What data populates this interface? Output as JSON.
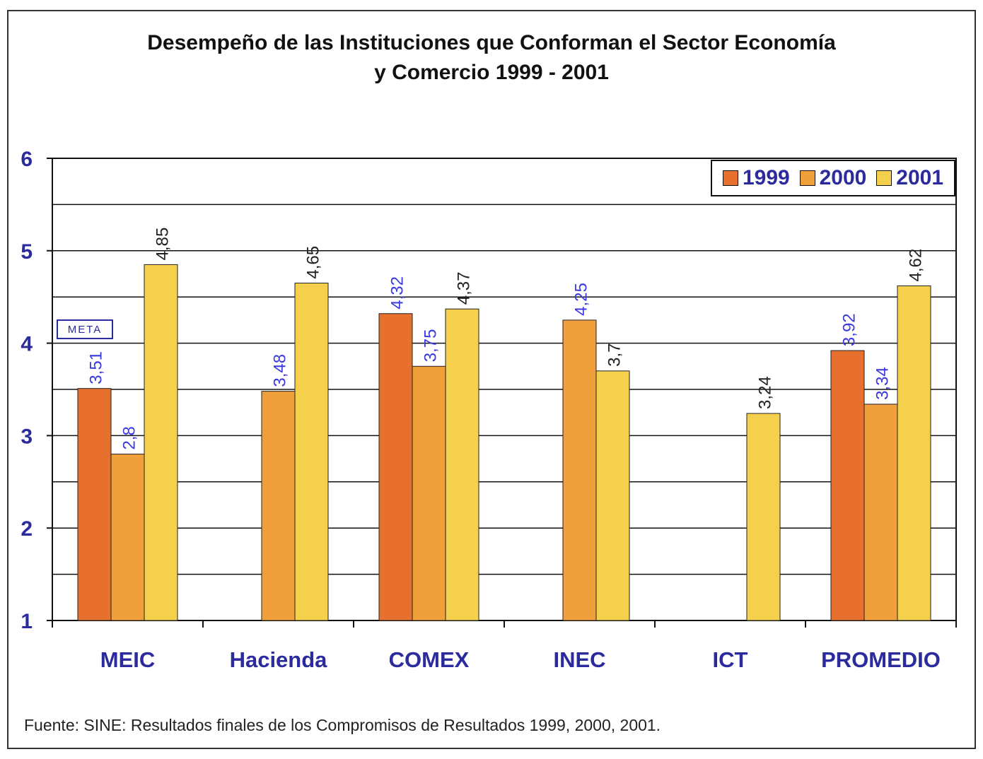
{
  "colors": {
    "s1999": "#e8702e",
    "s2000": "#f0a03a",
    "s2001": "#f5d04c",
    "axis_label": "#2b2b9e",
    "data_label_blue": "#3a3ae0",
    "data_label_black": "#222222"
  },
  "chart_data": {
    "type": "bar",
    "title": "Desempeño de las Instituciones que Conforman el Sector Economía y Comercio 1999 - 2001",
    "title_lines": [
      "Desempeño de las Instituciones que Conforman el Sector Economía",
      "y Comercio 1999 - 2001"
    ],
    "categories": [
      "MEIC",
      "Hacienda",
      "COMEX",
      "INEC",
      "ICT",
      "PROMEDIO"
    ],
    "series": [
      {
        "name": "1999",
        "values": [
          3.51,
          null,
          4.32,
          null,
          null,
          3.92
        ],
        "labels": [
          "3,51",
          null,
          "4,32",
          null,
          null,
          "3,92"
        ]
      },
      {
        "name": "2000",
        "values": [
          2.8,
          3.48,
          3.75,
          4.25,
          null,
          3.34
        ],
        "labels": [
          "2,8",
          "3,48",
          "3,75",
          "4,25",
          null,
          "3,34"
        ]
      },
      {
        "name": "2001",
        "values": [
          4.85,
          4.65,
          4.37,
          3.7,
          3.24,
          4.62
        ],
        "labels": [
          "4,85",
          "4,65",
          "4,37",
          "3,7",
          "3,24",
          "4,62"
        ]
      }
    ],
    "ylim": [
      1,
      6
    ],
    "yticks": [
      "1",
      "2",
      "3",
      "4",
      "5",
      "6"
    ],
    "grid": true,
    "legend_position": "top-right",
    "annotation": "META"
  },
  "source": "Fuente: SINE: Resultados finales de los Compromisos de Resultados 1999, 2000, 2001."
}
